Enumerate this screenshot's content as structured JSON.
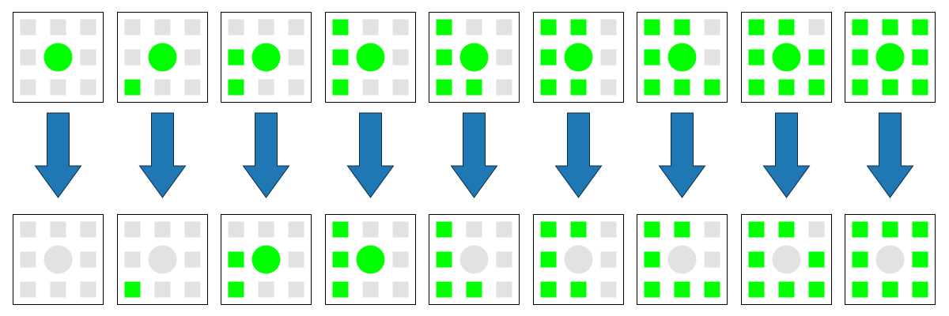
{
  "colors": {
    "on": "#00ff00",
    "off": "#e2e2e2",
    "arrow_fill": "#1f77b4",
    "arrow_stroke": "#0b2a40",
    "panel_border": "#000000",
    "panel_fill": "#ffffff"
  },
  "rows": [
    "before",
    "after"
  ],
  "neighbor_order": [
    "top-left",
    "top-center",
    "top-right",
    "middle-left",
    "middle-right",
    "bottom-left",
    "bottom-center",
    "bottom-right"
  ],
  "columns": [
    {
      "before": {
        "center": true,
        "neighbors": [
          0,
          0,
          0,
          0,
          0,
          0,
          0,
          0
        ]
      },
      "after": {
        "center": false,
        "neighbors": [
          0,
          0,
          0,
          0,
          0,
          0,
          0,
          0
        ]
      }
    },
    {
      "before": {
        "center": true,
        "neighbors": [
          0,
          0,
          0,
          0,
          0,
          1,
          0,
          0
        ]
      },
      "after": {
        "center": false,
        "neighbors": [
          0,
          0,
          0,
          0,
          0,
          1,
          0,
          0
        ]
      }
    },
    {
      "before": {
        "center": true,
        "neighbors": [
          0,
          0,
          0,
          1,
          0,
          1,
          0,
          0
        ]
      },
      "after": {
        "center": true,
        "neighbors": [
          0,
          0,
          0,
          1,
          0,
          1,
          0,
          0
        ]
      }
    },
    {
      "before": {
        "center": true,
        "neighbors": [
          1,
          0,
          0,
          1,
          0,
          1,
          0,
          0
        ]
      },
      "after": {
        "center": true,
        "neighbors": [
          1,
          0,
          0,
          1,
          0,
          1,
          0,
          0
        ]
      }
    },
    {
      "before": {
        "center": true,
        "neighbors": [
          1,
          0,
          0,
          1,
          0,
          1,
          1,
          0
        ]
      },
      "after": {
        "center": false,
        "neighbors": [
          1,
          0,
          0,
          1,
          0,
          1,
          1,
          0
        ]
      }
    },
    {
      "before": {
        "center": true,
        "neighbors": [
          1,
          1,
          0,
          1,
          0,
          1,
          1,
          0
        ]
      },
      "after": {
        "center": false,
        "neighbors": [
          1,
          1,
          0,
          1,
          0,
          1,
          1,
          0
        ]
      }
    },
    {
      "before": {
        "center": true,
        "neighbors": [
          1,
          1,
          0,
          1,
          0,
          1,
          1,
          1
        ]
      },
      "after": {
        "center": false,
        "neighbors": [
          1,
          1,
          0,
          1,
          0,
          1,
          1,
          1
        ]
      }
    },
    {
      "before": {
        "center": true,
        "neighbors": [
          1,
          1,
          0,
          1,
          1,
          1,
          1,
          1
        ]
      },
      "after": {
        "center": false,
        "neighbors": [
          1,
          1,
          0,
          1,
          1,
          1,
          1,
          1
        ]
      }
    },
    {
      "before": {
        "center": true,
        "neighbors": [
          1,
          1,
          1,
          1,
          1,
          1,
          1,
          1
        ]
      },
      "after": {
        "center": false,
        "neighbors": [
          1,
          1,
          1,
          1,
          1,
          1,
          1,
          1
        ]
      }
    }
  ]
}
